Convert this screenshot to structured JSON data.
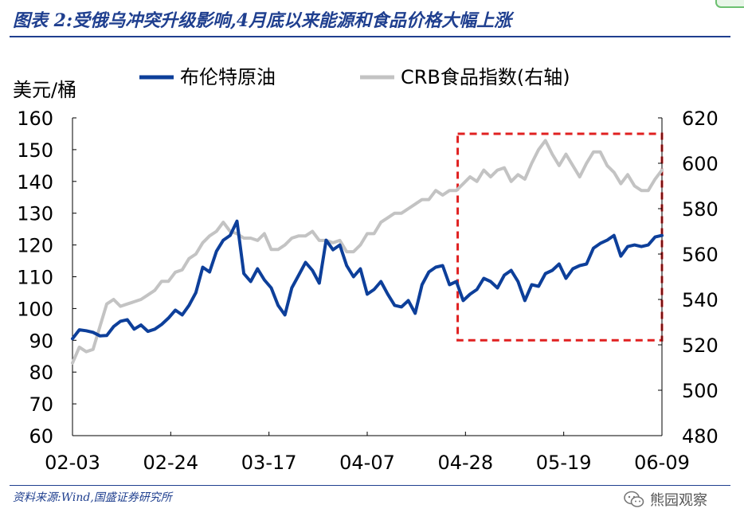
{
  "title": "图表 2:受俄乌冲突升级影响,4月底以来能源和食品价格大幅上涨",
  "source": "资料来源:Wind,国盛证券研究所",
  "watermark": "熊园观察",
  "chart_data": {
    "type": "line",
    "ylabel_left": "美元/桶",
    "x_tick_labels": [
      "02-03",
      "02-24",
      "03-17",
      "04-07",
      "04-28",
      "05-19",
      "06-09"
    ],
    "ylim_left": [
      60,
      160
    ],
    "yticks_left": [
      60,
      70,
      80,
      90,
      100,
      110,
      120,
      130,
      140,
      150,
      160
    ],
    "ylim_right": [
      480,
      620
    ],
    "yticks_right": [
      480,
      500,
      520,
      540,
      560,
      580,
      600,
      620
    ],
    "legend_position": "top",
    "highlight_box": {
      "x_range": [
        56.2,
        86.0
      ],
      "y_range_left": [
        90,
        155
      ]
    },
    "colors": {
      "brent": "#0d3f9a",
      "crb": "#c3c3c3",
      "highlight": "#e02020",
      "axis": "#000000"
    },
    "series": [
      {
        "name": "布伦特原油",
        "axis": "left",
        "x": [
          0,
          1,
          2,
          3,
          4,
          5,
          6,
          7,
          8,
          9,
          10,
          11,
          12,
          13,
          14,
          15,
          16,
          17,
          18,
          19,
          20,
          21,
          22,
          23,
          24,
          25,
          26,
          27,
          28,
          29,
          30,
          31,
          32,
          33,
          34,
          35,
          36,
          37,
          38,
          39,
          40,
          41,
          42,
          43,
          44,
          45,
          46,
          47,
          48,
          49,
          50,
          51,
          52,
          53,
          54,
          55,
          56,
          57,
          58,
          59,
          60,
          61,
          62,
          63,
          64,
          65,
          66,
          67,
          68,
          69,
          70,
          71,
          72,
          73,
          74,
          75,
          76,
          77,
          78,
          79,
          80,
          81,
          82,
          83,
          84,
          85,
          86
        ],
        "values": [
          90.5,
          93.3,
          93.0,
          92.5,
          91.4,
          91.5,
          94.3,
          96.0,
          96.5,
          93.5,
          94.8,
          92.8,
          93.5,
          95.0,
          97.0,
          99.5,
          98.0,
          101.0,
          105.0,
          113.0,
          111.5,
          118.0,
          121.5,
          123.0,
          127.5,
          111.0,
          108.5,
          112.5,
          109.0,
          106.5,
          101.0,
          98.0,
          106.5,
          110.5,
          114.5,
          112.0,
          108.0,
          121.5,
          118.5,
          120.0,
          113.5,
          110.0,
          112.5,
          104.5,
          106.0,
          108.5,
          104.5,
          101.0,
          100.5,
          102.5,
          98.5,
          107.5,
          111.5,
          113.0,
          113.5,
          107.5,
          108.5,
          102.5,
          104.5,
          106.0,
          109.5,
          108.5,
          106.5,
          110.5,
          112.0,
          108.5,
          102.5,
          107.5,
          107.0,
          111.0,
          112.0,
          114.0,
          109.5,
          112.5,
          113.5,
          114.0,
          119.0,
          120.5,
          121.5,
          123.0,
          116.5,
          119.5,
          120.0,
          119.5,
          120.0,
          122.5,
          123.0
        ]
      },
      {
        "name": "CRB食品指数(右轴)",
        "axis": "right",
        "x": [
          0,
          1,
          2,
          3,
          4,
          5,
          6,
          7,
          8,
          9,
          10,
          11,
          12,
          13,
          14,
          15,
          16,
          17,
          18,
          19,
          20,
          21,
          22,
          23,
          24,
          25,
          26,
          27,
          28,
          29,
          30,
          31,
          32,
          33,
          34,
          35,
          36,
          37,
          38,
          39,
          40,
          41,
          42,
          43,
          44,
          45,
          46,
          47,
          48,
          49,
          50,
          51,
          52,
          53,
          54,
          55,
          56,
          57,
          58,
          59,
          60,
          61,
          62,
          63,
          64,
          65,
          66,
          67,
          68,
          69,
          70,
          71,
          72,
          73,
          74,
          75,
          76,
          77,
          78,
          79,
          80,
          81,
          82,
          83,
          84,
          85,
          86
        ],
        "values": [
          512,
          519,
          517,
          518,
          528,
          538,
          540,
          537,
          538,
          539,
          540,
          542,
          544,
          548,
          548,
          552,
          553,
          558,
          560,
          565,
          568,
          570,
          574,
          570,
          569,
          567,
          567,
          566,
          569,
          562,
          562,
          564,
          567,
          568,
          568,
          570,
          566,
          566,
          565,
          566,
          561,
          561,
          564,
          569,
          569,
          574,
          576,
          578,
          578,
          580,
          582,
          584,
          584,
          588,
          586,
          588,
          588,
          591,
          594,
          592,
          597,
          594,
          597,
          598,
          592,
          595,
          593,
          600,
          606,
          610,
          604,
          599,
          604,
          599,
          594,
          600,
          605,
          605,
          599,
          596,
          591,
          595,
          590,
          588,
          588,
          593,
          597
        ]
      }
    ]
  }
}
